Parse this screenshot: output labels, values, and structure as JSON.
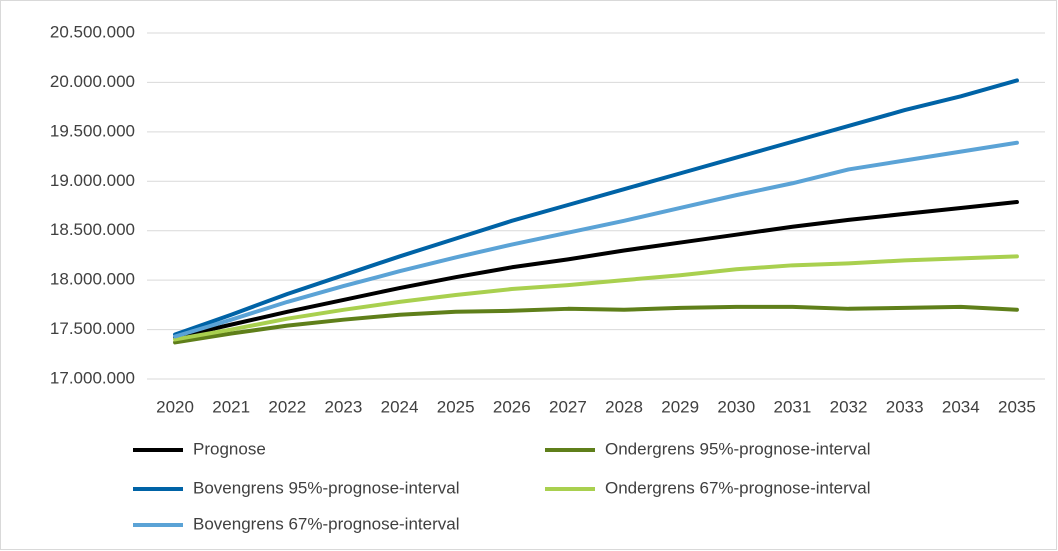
{
  "chart_data": {
    "type": "line",
    "categories": [
      "2020",
      "2021",
      "2022",
      "2023",
      "2024",
      "2025",
      "2026",
      "2027",
      "2028",
      "2029",
      "2030",
      "2031",
      "2032",
      "2033",
      "2034",
      "2035"
    ],
    "series": [
      {
        "name": "Prognose",
        "color": "#000000",
        "values": [
          17420000,
          17550000,
          17680000,
          17800000,
          17920000,
          18030000,
          18130000,
          18210000,
          18300000,
          18380000,
          18460000,
          18540000,
          18610000,
          18670000,
          18730000,
          18790000
        ]
      },
      {
        "name": "Ondergrens 95%-prognose-interval",
        "color": "#5f7f1a",
        "values": [
          17370000,
          17460000,
          17540000,
          17600000,
          17650000,
          17680000,
          17690000,
          17710000,
          17700000,
          17720000,
          17730000,
          17730000,
          17710000,
          17720000,
          17730000,
          17700000
        ]
      },
      {
        "name": "Bovengrens 95%-prognose-interval",
        "color": "#0063a6",
        "values": [
          17450000,
          17650000,
          17860000,
          18050000,
          18240000,
          18420000,
          18600000,
          18760000,
          18920000,
          19080000,
          19240000,
          19400000,
          19560000,
          19720000,
          19860000,
          20020000
        ]
      },
      {
        "name": "Ondergrens 67%-prognose-interval",
        "color": "#a9d04f",
        "values": [
          17400000,
          17500000,
          17610000,
          17700000,
          17780000,
          17850000,
          17910000,
          17950000,
          18000000,
          18050000,
          18110000,
          18150000,
          18170000,
          18200000,
          18220000,
          18240000
        ]
      },
      {
        "name": "Bovengrens 67%-prognose-interval",
        "color": "#5ba3d6",
        "values": [
          17430000,
          17600000,
          17780000,
          17940000,
          18090000,
          18230000,
          18360000,
          18480000,
          18600000,
          18730000,
          18860000,
          18980000,
          19120000,
          19210000,
          19300000,
          19390000
        ]
      }
    ],
    "ylim": [
      17000000,
      20500000
    ],
    "yticks": [
      {
        "value": 17000000,
        "label": "17.000.000"
      },
      {
        "value": 17500000,
        "label": "17.500.000"
      },
      {
        "value": 18000000,
        "label": "18.000.000"
      },
      {
        "value": 18500000,
        "label": "18.500.000"
      },
      {
        "value": 19000000,
        "label": "19.000.000"
      },
      {
        "value": 19500000,
        "label": "19.500.000"
      },
      {
        "value": 20000000,
        "label": "20.000.000"
      },
      {
        "value": 20500000,
        "label": "20.500.000"
      }
    ],
    "grid": true,
    "legend": "bottom"
  }
}
